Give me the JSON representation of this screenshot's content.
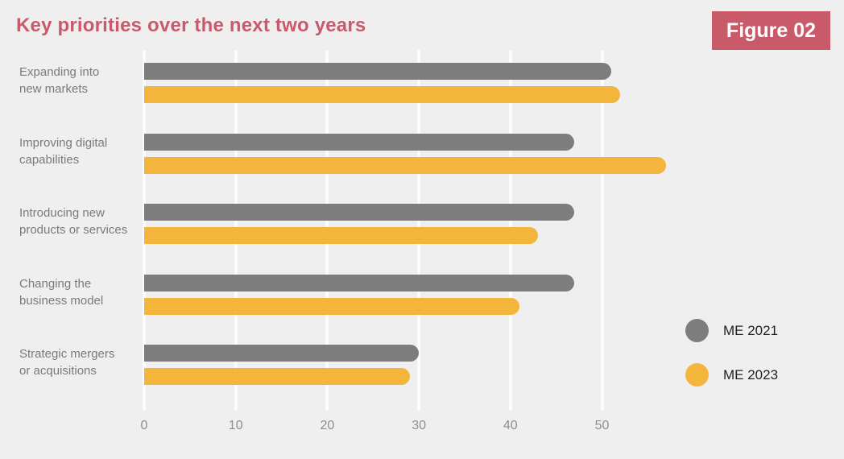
{
  "page": {
    "title": "Key priorities over the next two years",
    "figure_badge": "Figure 02"
  },
  "colors": {
    "background": "#EFEFEF",
    "title": "#C85A6A",
    "badge_bg": "#C85A6A",
    "badge_text": "#FFFFFF",
    "gridline": "#FCFCFC",
    "category_label": "#7A7A7A",
    "tick_label": "#8E8E8E",
    "legend_text": "#1F1F1F",
    "series_me_2021": "#7D7D7D",
    "series_me_2023": "#F4B53D"
  },
  "chart_data": {
    "type": "bar",
    "orientation": "horizontal",
    "title": "Key priorities over the next two years",
    "categories": [
      "Expanding into\nnew markets",
      "Improving digital\ncapabilities",
      "Introducing new\nproducts or services",
      "Changing the\nbusiness model",
      "Strategic mergers\nor acquisitions"
    ],
    "series": [
      {
        "name": "ME 2021",
        "color": "#7D7D7D",
        "values": [
          51,
          47,
          47,
          47,
          30
        ]
      },
      {
        "name": "ME 2023",
        "color": "#F4B53D",
        "values": [
          52,
          57,
          43,
          41,
          29
        ]
      }
    ],
    "x_ticks": [
      0,
      10,
      20,
      30,
      40,
      50
    ],
    "xlim": [
      0,
      59
    ],
    "xlabel": "",
    "ylabel": "",
    "grid": true,
    "legend_position": "right-bottom"
  }
}
